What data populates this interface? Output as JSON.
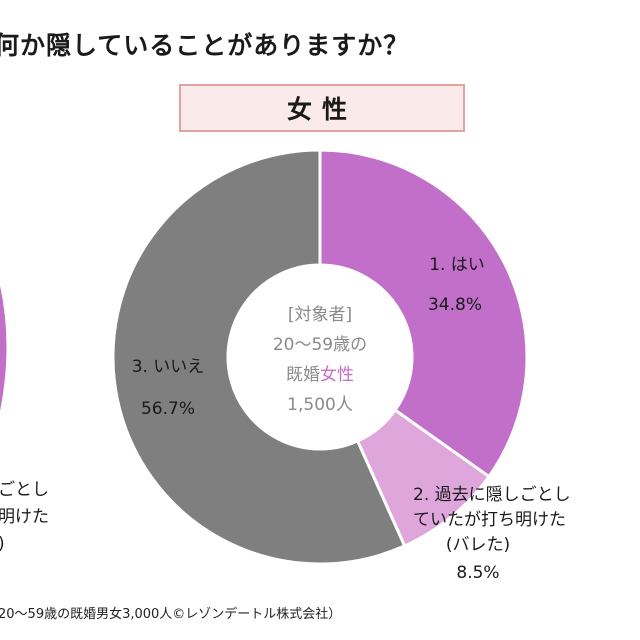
{
  "title": "何か隠していることがありますか？",
  "panel_label": "女性",
  "footnote": "20～59歳の既婚男女3,000人©レゾンデートル株式会社）",
  "center_label": {
    "line1": "[対象者]",
    "line2": "20～59歳の",
    "line3_prefix": "既婚",
    "line3_accent": "女性",
    "line4": "1,500人"
  },
  "left_fragment": {
    "line1": "ごとし",
    "line2": "明けた",
    "line3": ")"
  },
  "colors": {
    "yes": "#c26fc9",
    "revealed": "#dfa6dc",
    "no": "#7f7f7f",
    "accent_text": "#c86ec8"
  },
  "chart_data": {
    "type": "pie",
    "style": "donut",
    "start": "12 o'clock, clockwise",
    "slices": [
      {
        "label": "1. はい",
        "value": 34.8,
        "value_text": "34.8%",
        "color": "#c26fc9"
      },
      {
        "label_lines": [
          "2. 過去に隠しごとし",
          "ていたが打ち明けた",
          "(バレた)"
        ],
        "value": 8.5,
        "value_text": "8.5%",
        "color": "#dfa6dc"
      },
      {
        "label": "3. いいえ",
        "value": 56.7,
        "value_text": "56.7%",
        "color": "#7f7f7f"
      }
    ]
  }
}
